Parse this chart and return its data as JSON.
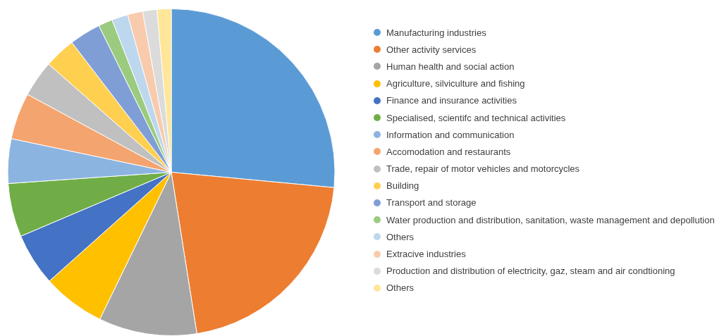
{
  "chart_data": {
    "type": "pie",
    "categories": [
      "Manufacturing industries",
      "Other activity services",
      "Human health and social action",
      "Agriculture, silviculture and fishing",
      "Finance and insurance activities",
      "Specialised, scientifc and technical activities",
      "Information and communication",
      "Accomodation and restaurants",
      "Trade, repair of motor vehicles and motorcycles",
      "Building",
      "Transport and storage",
      "Water production and distribution, sanitation, waste management and depollution",
      "Others",
      "Extracive industries",
      "Production and distribution of electricity, gaz, steam and air condtioning",
      "Others"
    ],
    "values": [
      26.5,
      21.0,
      9.7,
      6.2,
      5.2,
      5.3,
      4.4,
      4.6,
      3.6,
      3.1,
      3.1,
      1.4,
      1.6,
      1.5,
      1.4,
      1.4
    ],
    "colors": [
      "#5b9bd5",
      "#ed7d31",
      "#a5a5a5",
      "#ffc000",
      "#4472c4",
      "#70ad47",
      "#8cb4e0",
      "#f4a46e",
      "#c0c0c0",
      "#ffd050",
      "#7f9ed6",
      "#9bcb7e",
      "#bdd7ee",
      "#f8cbad",
      "#dbdbdb",
      "#ffe699"
    ],
    "legend": "right"
  }
}
